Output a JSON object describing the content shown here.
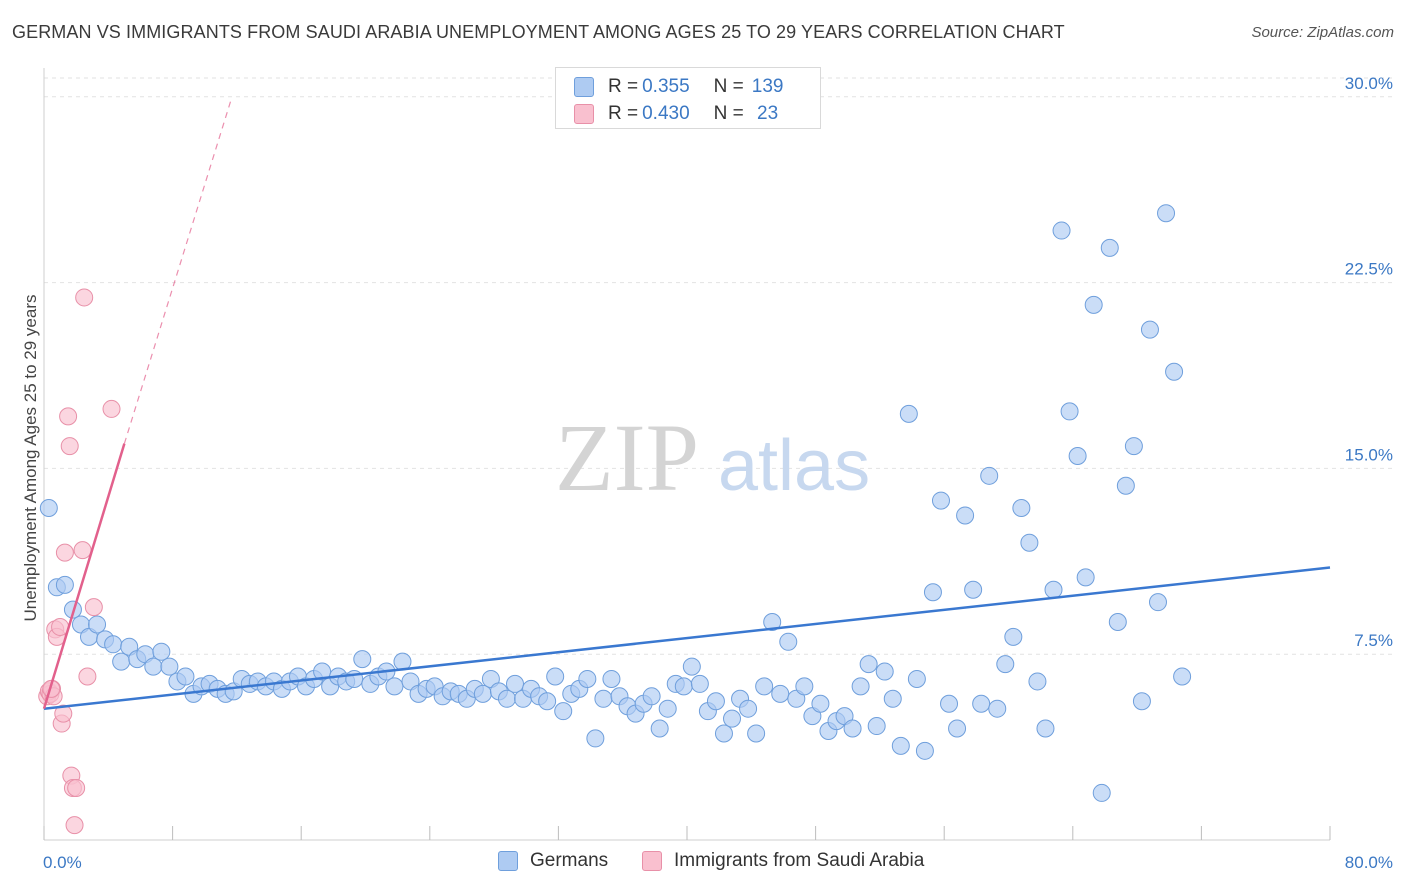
{
  "title": "GERMAN VS IMMIGRANTS FROM SAUDI ARABIA UNEMPLOYMENT AMONG AGES 25 TO 29 YEARS CORRELATION CHART",
  "source": "Source: ZipAtlas.com",
  "watermark": {
    "zip": "ZIP",
    "atlas": "atlas"
  },
  "legend_top": {
    "rows": [
      {
        "r_label": "R = ",
        "r_value": "0.355",
        "n_label": "N = ",
        "n_value": "139",
        "color": "#aecbf2",
        "border": "#6f9fdc"
      },
      {
        "r_label": "R = ",
        "r_value": "0.430",
        "n_label": "N = ",
        "n_value": " 23",
        "color": "#f9c0cf",
        "border": "#e890a8"
      }
    ]
  },
  "chart_data": {
    "type": "scatter",
    "title": "GERMAN VS IMMIGRANTS FROM SAUDI ARABIA UNEMPLOYMENT AMONG AGES 25 TO 29 YEARS CORRELATION CHART",
    "xlabel": "",
    "ylabel": "Unemployment Among Ages 25 to 29 years",
    "xlim": [
      0,
      80
    ],
    "ylim": [
      0,
      31
    ],
    "x_tick_labels": [
      "0.0%",
      "80.0%"
    ],
    "y_ticks": [
      7.5,
      15.0,
      22.5,
      30.0
    ],
    "y_tick_labels": [
      "7.5%",
      "15.0%",
      "22.5%",
      "30.0%"
    ],
    "grid": true,
    "legend_position": "bottom",
    "series": [
      {
        "name": "Germans",
        "color": "#aecbf2",
        "edge": "#6f9fdc",
        "trend": {
          "x": [
            0,
            80
          ],
          "y": [
            5.3,
            11.0
          ],
          "color": "#3a78d0"
        },
        "points": [
          [
            0.3,
            13.4
          ],
          [
            0.8,
            10.2
          ],
          [
            1.3,
            10.3
          ],
          [
            1.8,
            9.3
          ],
          [
            2.3,
            8.7
          ],
          [
            2.8,
            8.2
          ],
          [
            3.3,
            8.7
          ],
          [
            3.8,
            8.1
          ],
          [
            4.3,
            7.9
          ],
          [
            4.8,
            7.2
          ],
          [
            5.3,
            7.8
          ],
          [
            5.8,
            7.3
          ],
          [
            6.3,
            7.5
          ],
          [
            6.8,
            7.0
          ],
          [
            7.3,
            7.6
          ],
          [
            7.8,
            7.0
          ],
          [
            8.3,
            6.4
          ],
          [
            8.8,
            6.6
          ],
          [
            9.3,
            5.9
          ],
          [
            9.8,
            6.2
          ],
          [
            10.3,
            6.3
          ],
          [
            10.8,
            6.1
          ],
          [
            11.3,
            5.9
          ],
          [
            11.8,
            6.0
          ],
          [
            12.3,
            6.5
          ],
          [
            12.8,
            6.3
          ],
          [
            13.3,
            6.4
          ],
          [
            13.8,
            6.2
          ],
          [
            14.3,
            6.4
          ],
          [
            14.8,
            6.1
          ],
          [
            15.3,
            6.4
          ],
          [
            15.8,
            6.6
          ],
          [
            16.3,
            6.2
          ],
          [
            16.8,
            6.5
          ],
          [
            17.3,
            6.8
          ],
          [
            17.8,
            6.2
          ],
          [
            18.3,
            6.6
          ],
          [
            18.8,
            6.4
          ],
          [
            19.3,
            6.5
          ],
          [
            19.8,
            7.3
          ],
          [
            20.3,
            6.3
          ],
          [
            20.8,
            6.6
          ],
          [
            21.3,
            6.8
          ],
          [
            21.8,
            6.2
          ],
          [
            22.3,
            7.2
          ],
          [
            22.8,
            6.4
          ],
          [
            23.3,
            5.9
          ],
          [
            23.8,
            6.1
          ],
          [
            24.3,
            6.2
          ],
          [
            24.8,
            5.8
          ],
          [
            25.3,
            6.0
          ],
          [
            25.8,
            5.9
          ],
          [
            26.3,
            5.7
          ],
          [
            26.8,
            6.1
          ],
          [
            27.3,
            5.9
          ],
          [
            27.8,
            6.5
          ],
          [
            28.3,
            6.0
          ],
          [
            28.8,
            5.7
          ],
          [
            29.3,
            6.3
          ],
          [
            29.8,
            5.7
          ],
          [
            30.3,
            6.1
          ],
          [
            30.8,
            5.8
          ],
          [
            31.3,
            5.6
          ],
          [
            31.8,
            6.6
          ],
          [
            32.3,
            5.2
          ],
          [
            32.8,
            5.9
          ],
          [
            33.3,
            6.1
          ],
          [
            33.8,
            6.5
          ],
          [
            34.3,
            4.1
          ],
          [
            34.8,
            5.7
          ],
          [
            35.3,
            6.5
          ],
          [
            35.8,
            5.8
          ],
          [
            36.3,
            5.4
          ],
          [
            36.8,
            5.1
          ],
          [
            37.3,
            5.5
          ],
          [
            37.8,
            5.8
          ],
          [
            38.3,
            4.5
          ],
          [
            38.8,
            5.3
          ],
          [
            39.3,
            6.3
          ],
          [
            39.8,
            6.2
          ],
          [
            40.3,
            7.0
          ],
          [
            40.8,
            6.3
          ],
          [
            41.3,
            5.2
          ],
          [
            41.8,
            5.6
          ],
          [
            42.3,
            4.3
          ],
          [
            42.8,
            4.9
          ],
          [
            43.3,
            5.7
          ],
          [
            43.8,
            5.3
          ],
          [
            44.3,
            4.3
          ],
          [
            44.8,
            6.2
          ],
          [
            45.3,
            8.8
          ],
          [
            45.8,
            5.9
          ],
          [
            46.3,
            8.0
          ],
          [
            46.8,
            5.7
          ],
          [
            47.3,
            6.2
          ],
          [
            47.8,
            5.0
          ],
          [
            48.3,
            5.5
          ],
          [
            48.8,
            4.4
          ],
          [
            49.3,
            4.8
          ],
          [
            49.8,
            5.0
          ],
          [
            50.3,
            4.5
          ],
          [
            50.8,
            6.2
          ],
          [
            51.3,
            7.1
          ],
          [
            51.8,
            4.6
          ],
          [
            52.3,
            6.8
          ],
          [
            52.8,
            5.7
          ],
          [
            53.3,
            3.8
          ],
          [
            53.8,
            17.2
          ],
          [
            54.3,
            6.5
          ],
          [
            54.8,
            3.6
          ],
          [
            55.3,
            10.0
          ],
          [
            55.8,
            13.7
          ],
          [
            56.3,
            5.5
          ],
          [
            56.8,
            4.5
          ],
          [
            57.3,
            13.1
          ],
          [
            57.8,
            10.1
          ],
          [
            58.3,
            5.5
          ],
          [
            58.8,
            14.7
          ],
          [
            59.3,
            5.3
          ],
          [
            59.8,
            7.1
          ],
          [
            60.3,
            8.2
          ],
          [
            60.8,
            13.4
          ],
          [
            61.3,
            12.0
          ],
          [
            61.8,
            6.4
          ],
          [
            62.3,
            4.5
          ],
          [
            62.8,
            10.1
          ],
          [
            63.3,
            24.6
          ],
          [
            63.8,
            17.3
          ],
          [
            64.3,
            15.5
          ],
          [
            64.8,
            10.6
          ],
          [
            65.3,
            21.6
          ],
          [
            65.8,
            1.9
          ],
          [
            66.3,
            23.9
          ],
          [
            66.8,
            8.8
          ],
          [
            67.3,
            14.3
          ],
          [
            67.8,
            15.9
          ],
          [
            68.3,
            5.6
          ],
          [
            68.8,
            20.6
          ],
          [
            69.3,
            9.6
          ],
          [
            69.8,
            25.3
          ],
          [
            70.3,
            18.9
          ],
          [
            70.8,
            6.6
          ]
        ]
      },
      {
        "name": "Immigrants from Saudi Arabia",
        "color": "#f9c0cf",
        "edge": "#e890a8",
        "trend": {
          "x": [
            0,
            5.0
          ],
          "y": [
            5.3,
            16.0
          ],
          "dashed_extension_to": [
            11.6,
            29.8
          ],
          "color": "#e2608c"
        },
        "points": [
          [
            0.2,
            5.8
          ],
          [
            0.3,
            6.0
          ],
          [
            0.4,
            5.9
          ],
          [
            0.5,
            6.1
          ],
          [
            0.6,
            5.8
          ],
          [
            0.7,
            8.5
          ],
          [
            0.8,
            8.2
          ],
          [
            1.0,
            8.6
          ],
          [
            1.1,
            4.7
          ],
          [
            1.2,
            5.1
          ],
          [
            1.3,
            11.6
          ],
          [
            1.5,
            17.1
          ],
          [
            1.6,
            15.9
          ],
          [
            1.7,
            2.6
          ],
          [
            1.8,
            2.1
          ],
          [
            1.9,
            0.6
          ],
          [
            2.0,
            2.1
          ],
          [
            2.4,
            11.7
          ],
          [
            2.5,
            21.9
          ],
          [
            2.7,
            6.6
          ],
          [
            3.1,
            9.4
          ],
          [
            4.2,
            17.4
          ],
          [
            0.45,
            6.1
          ]
        ]
      }
    ]
  },
  "bottom_legend": [
    {
      "label": "Germans",
      "color": "#aecbf2",
      "border": "#6f9fdc"
    },
    {
      "label": "Immigrants from Saudi Arabia",
      "color": "#f9c0cf",
      "border": "#e890a8"
    }
  ]
}
